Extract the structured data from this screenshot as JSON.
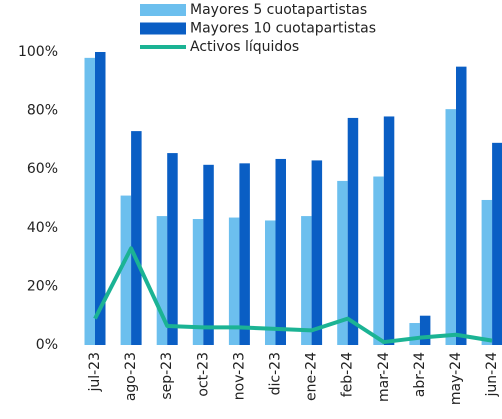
{
  "chart_data": {
    "type": "bar_line",
    "categories": [
      "jul-23",
      "ago-23",
      "sep-23",
      "oct-23",
      "nov-23",
      "dic-23",
      "ene-24",
      "feb-24",
      "mar-24",
      "abr-24",
      "may-24",
      "jun-24"
    ],
    "series": [
      {
        "name": "Mayores 5 cuotapartistas",
        "color": "#6cbfee",
        "kind": "bar",
        "values": [
          98,
          51,
          44,
          43,
          43.5,
          42.5,
          44,
          56,
          57.5,
          7.5,
          80.5,
          49.5
        ]
      },
      {
        "name": "Mayores 10 cuotapartistas",
        "color": "#0a5ec4",
        "kind": "bar",
        "values": [
          100,
          73,
          65.5,
          61.5,
          62,
          63.5,
          63,
          77.5,
          78,
          10,
          95,
          69
        ]
      },
      {
        "name": "Activos líquidos",
        "color": "#1bb394",
        "kind": "line",
        "values": [
          9,
          33,
          6.5,
          6,
          6,
          5.5,
          5,
          9,
          1,
          2.5,
          3.5,
          1.5
        ]
      }
    ],
    "ylim": [
      0,
      100
    ],
    "yticks": [
      {
        "value": 0,
        "label": "0%"
      },
      {
        "value": 20,
        "label": "20%"
      },
      {
        "value": 40,
        "label": "40%"
      },
      {
        "value": 60,
        "label": "60%"
      },
      {
        "value": 80,
        "label": "80%"
      },
      {
        "value": 100,
        "label": "100%"
      }
    ],
    "grid": false,
    "legend": "top"
  }
}
